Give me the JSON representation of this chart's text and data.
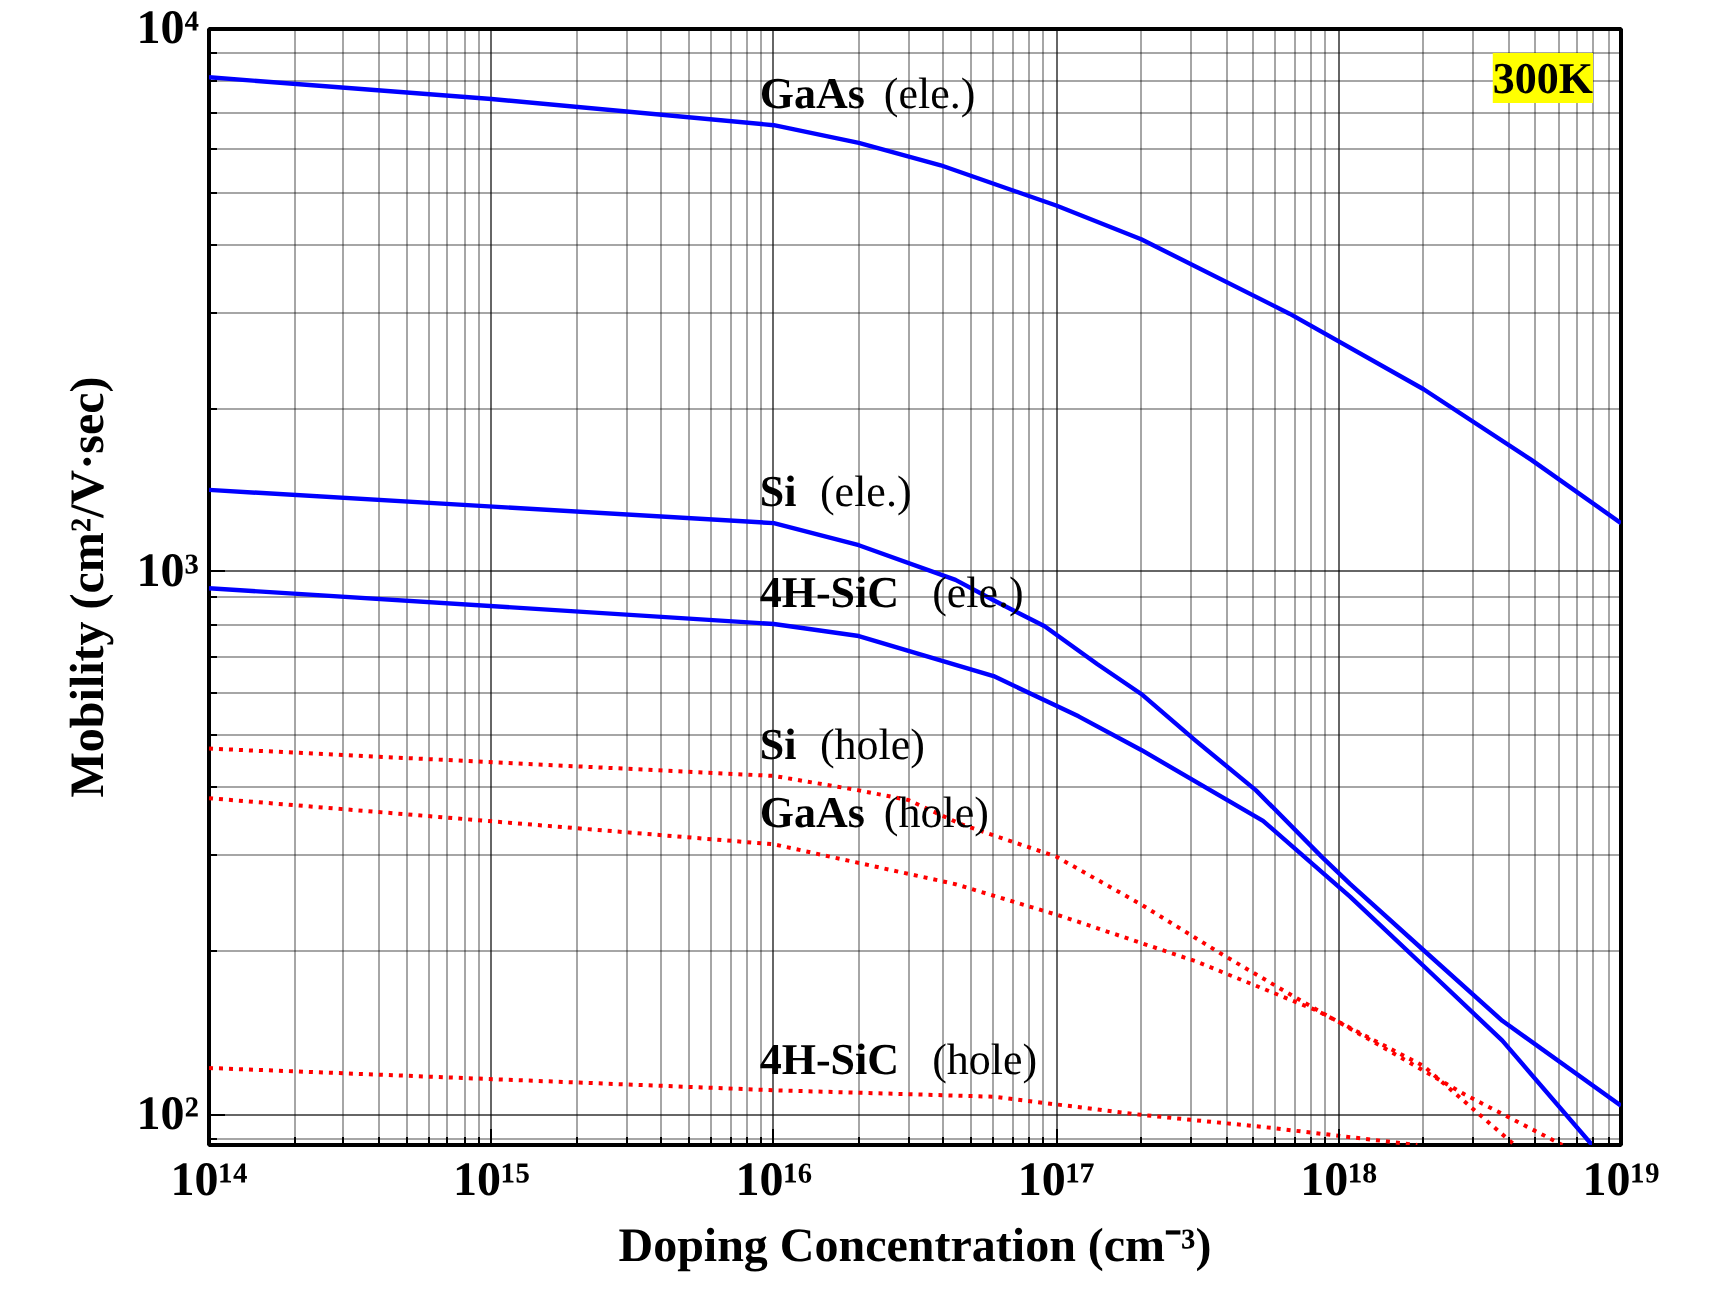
{
  "chart_data": {
    "type": "line",
    "xlabel": "Doping Concentration (cm⁻³)",
    "ylabel": "Mobility (cm²/V·sec)",
    "log": "xy",
    "grid": true,
    "legend": false,
    "xlim": [
      100000000000000.0,
      1e+19
    ],
    "ylim": [
      88,
      10000
    ],
    "xticks": [
      {
        "value": 100000000000000.0,
        "label": "10¹⁴"
      },
      {
        "value": 1000000000000000.0,
        "label": "10¹⁵"
      },
      {
        "value": 1e+16,
        "label": "10¹⁶"
      },
      {
        "value": 1e+17,
        "label": "10¹⁷"
      },
      {
        "value": 1e+18,
        "label": "10¹⁸"
      },
      {
        "value": 1e+19,
        "label": "10¹⁹"
      }
    ],
    "yticks": [
      {
        "value": 100,
        "label": "10²"
      },
      {
        "value": 1000,
        "label": "10³"
      },
      {
        "value": 10000,
        "label": "10⁴"
      }
    ],
    "series": [
      {
        "name": "GaAs (ele.)",
        "color": "#0000ff",
        "line_style": "solid",
        "x": [
          100000000000000.0,
          1000000000000000.0,
          1e+16,
          2e+16,
          3.9e+16,
          1e+17,
          2e+17,
          6.7e+17,
          2e+18,
          4.8e+18,
          1e+19
        ],
        "values": [
          8150,
          7430,
          6650,
          6170,
          5610,
          4730,
          4100,
          2990,
          2170,
          1610,
          1230
        ]
      },
      {
        "name": "Si (ele.)",
        "color": "#0000ff",
        "line_style": "solid",
        "x": [
          100000000000000.0,
          1e+16,
          2e+16,
          4.4e+16,
          6e+16,
          9.1e+16,
          1.4e+17,
          2e+17,
          3.1e+17,
          5.1e+17,
          8.7e+17,
          1.1e+18,
          2e+18,
          3.8e+18,
          1e+19
        ],
        "values": [
          1416,
          1230,
          1120,
          967,
          887,
          794,
          676,
          596,
          490,
          396,
          299,
          266,
          201,
          149,
          104
        ]
      },
      {
        "name": "4H-SiC (ele.)",
        "color": "#0000ff",
        "line_style": "solid",
        "x": [
          100000000000000.0,
          1e+16,
          2e+16,
          6e+16,
          1.2e+17,
          2e+17,
          5.4e+17,
          1.1e+18,
          2e+18,
          3.8e+18,
          7.9e+18
        ],
        "values": [
          933,
          802,
          762,
          643,
          542,
          470,
          348,
          252,
          188,
          137,
          88
        ]
      },
      {
        "name": "Si (hole)",
        "color": "#ff0000",
        "line_style": "dotted",
        "x": [
          100000000000000.0,
          1e+16,
          2e+16,
          3e+16,
          4.6e+16,
          1e+17,
          2e+17,
          3.9e+17,
          7.4e+17,
          1.6e+18,
          2.8e+18,
          6.2e+18
        ],
        "values": [
          473,
          421,
          396,
          380,
          343,
          299,
          244,
          197,
          162,
          129,
          109,
          88
        ]
      },
      {
        "name": "GaAs (hole)",
        "color": "#ff0000",
        "line_style": "dotted",
        "x": [
          100000000000000.0,
          1e+16,
          4.4e+16,
          1.05e+17,
          3.1e+17,
          8.3e+17,
          2e+18,
          4.2e+18
        ],
        "values": [
          383,
          315,
          266,
          232,
          192,
          156,
          123,
          88
        ]
      },
      {
        "name": "4H-SiC (hole)",
        "color": "#ff0000",
        "line_style": "dotted",
        "x": [
          100000000000000.0,
          1e+16,
          6e+16,
          2e+17,
          5.4e+17,
          1.9e+18
        ],
        "values": [
          122,
          111,
          108,
          100,
          95,
          88
        ]
      }
    ],
    "annotations": [
      "300K"
    ]
  }
}
